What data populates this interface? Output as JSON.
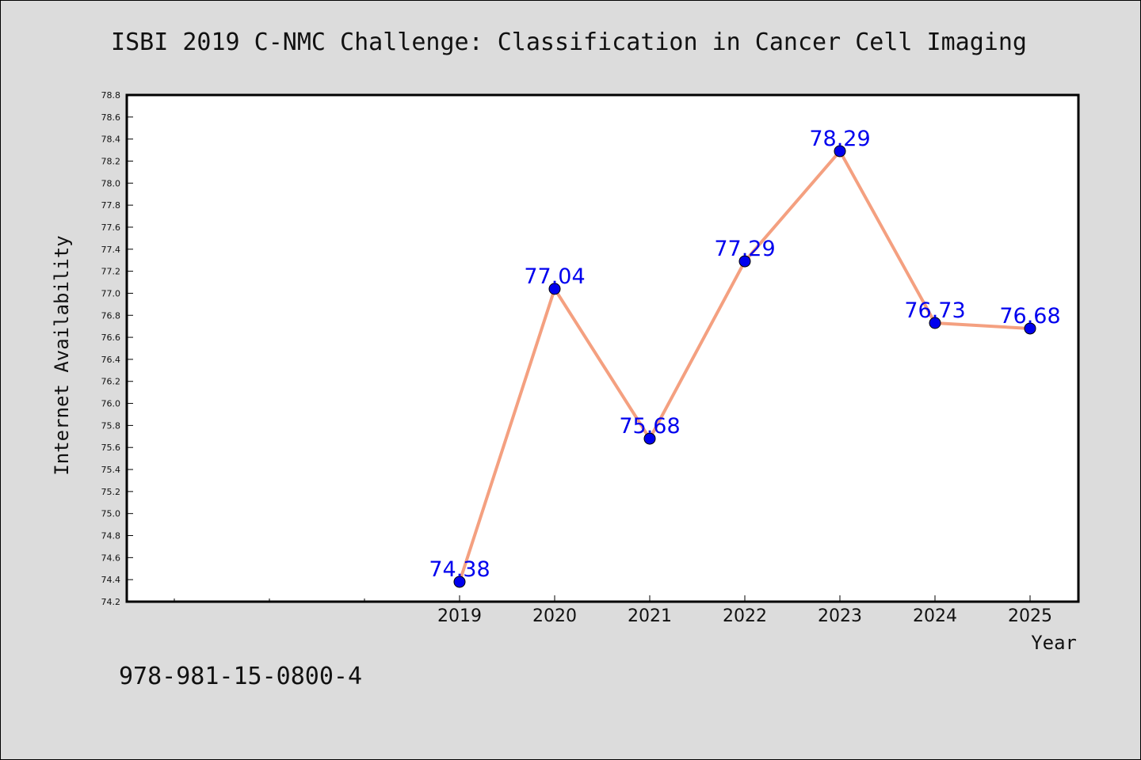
{
  "chart_data": {
    "type": "line",
    "title": "ISBI 2019 C-NMC Challenge: Classification in Cancer Cell Imaging",
    "xlabel": "Year",
    "ylabel": "Internet Availability",
    "x": [
      "2019",
      "2020",
      "2021",
      "2022",
      "2023",
      "2024",
      "2025"
    ],
    "series": [
      {
        "values": [
          74.38,
          77.04,
          75.68,
          77.29,
          78.29,
          76.73,
          76.68
        ]
      }
    ],
    "data_labels": [
      "74.38",
      "77.04",
      "75.68",
      "77.29",
      "78.29",
      "76.73",
      "76.68"
    ],
    "ylim": [
      74.2,
      78.8
    ],
    "y_ticks": [
      "74.2",
      "74.4",
      "74.6",
      "74.8",
      "75.0",
      "75.2",
      "75.4",
      "75.6",
      "75.8",
      "76.0",
      "76.2",
      "76.4",
      "76.6",
      "76.8",
      "77.0",
      "77.2",
      "77.4",
      "77.6",
      "77.8",
      "78.0",
      "78.2",
      "78.4",
      "78.6",
      "78.8"
    ],
    "empty_x_slots_before": 3,
    "grid": false,
    "line_color": "#f4a080",
    "marker_color": "#0000ee",
    "label_color": "#0000ee"
  },
  "footer": {
    "isbn": "978-981-15-0800-4"
  }
}
